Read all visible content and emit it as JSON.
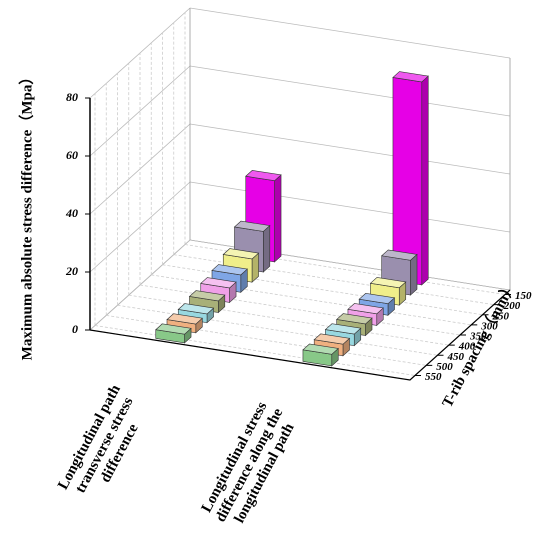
{
  "chart_data": {
    "type": "bar3d",
    "zlabel": "Maximum absolute stress difference（Mpa）",
    "ylabel": "T-rib spacing（mm）",
    "categories": [
      "Longitudinal path transverse stress difference",
      "Longitudinal stress difference along the longitudinal path"
    ],
    "series": [
      {
        "name": "150",
        "color": "#e600e6",
        "values": [
          28,
          70
        ]
      },
      {
        "name": "200",
        "color": "#9a8fae",
        "values": [
          14,
          12
        ]
      },
      {
        "name": "250",
        "color": "#f0ee8a",
        "values": [
          8,
          6
        ]
      },
      {
        "name": "300",
        "color": "#7fa6e6",
        "values": [
          6,
          4
        ]
      },
      {
        "name": "350",
        "color": "#f0a0e8",
        "values": [
          5,
          4
        ]
      },
      {
        "name": "400",
        "color": "#a8b078",
        "values": [
          4,
          4
        ]
      },
      {
        "name": "450",
        "color": "#98d8e0",
        "values": [
          3,
          4
        ]
      },
      {
        "name": "500",
        "color": "#f0b080",
        "values": [
          3,
          4
        ]
      },
      {
        "name": "550",
        "color": "#88c888",
        "values": [
          3,
          4
        ]
      }
    ],
    "zlim": [
      0,
      80
    ],
    "zticks": [
      0,
      20,
      40,
      60,
      80
    ],
    "grid": true
  }
}
